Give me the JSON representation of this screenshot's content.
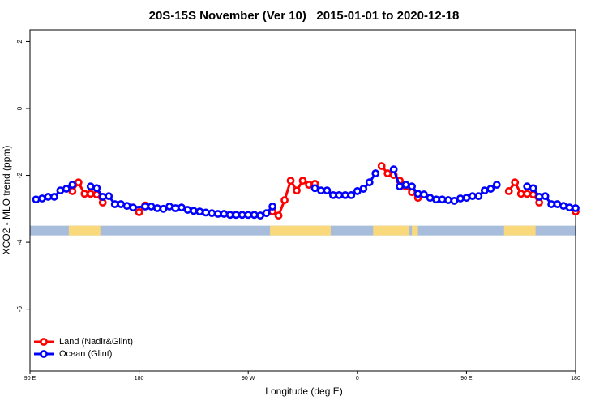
{
  "chart_data": {
    "type": "line",
    "title": "20S-15S November (Ver 10)   2015-01-01 to 2020-12-18",
    "x_label": "Longitude (deg E)",
    "y_label": "XCO2 - MLO trend (ppm)",
    "xlim": [
      90,
      540
    ],
    "xticks": [
      {
        "value": 90,
        "label": "90 E"
      },
      {
        "value": 180,
        "label": "180"
      },
      {
        "value": 270,
        "label": "90 W"
      },
      {
        "value": 360,
        "label": "0"
      },
      {
        "value": 450,
        "label": "90 E"
      },
      {
        "value": 540,
        "label": "180"
      }
    ],
    "ylim": [
      -7.85,
      2.35
    ],
    "yticks": [
      2,
      0,
      -2,
      -4,
      -6
    ],
    "legend": "bottom-left",
    "land_strip": {
      "y": -3.65,
      "ocean_color": "#a7bddb",
      "land_color": "#f9d97c",
      "land": [
        [
          122,
          148
        ],
        [
          288,
          338
        ],
        [
          373,
          403
        ],
        [
          405,
          410
        ],
        [
          481,
          507
        ]
      ]
    },
    "series": [
      {
        "name": "Land (Nadir&Glint)",
        "color": "#ff0000",
        "x": [
          125,
          130,
          135,
          140,
          145,
          150,
          155,
          180,
          185,
          190,
          290,
          295,
          300,
          305,
          310,
          315,
          320,
          325,
          330,
          380,
          385,
          390,
          395,
          400,
          405,
          410,
          415,
          485,
          490,
          495,
          500,
          505,
          510,
          515,
          540
        ],
        "values": [
          -2.47,
          -2.21,
          -2.55,
          -2.55,
          -2.57,
          -2.81,
          null,
          -3.1,
          -2.9,
          null,
          -3.08,
          -3.2,
          -2.74,
          -2.16,
          -2.45,
          -2.16,
          -2.28,
          -2.25,
          null,
          -1.72,
          -1.94,
          -1.99,
          -2.16,
          -2.33,
          -2.5,
          -2.67,
          null,
          -2.47,
          -2.21,
          -2.55,
          -2.55,
          -2.57,
          -2.81,
          null,
          -3.08
        ]
      },
      {
        "name": "Ocean (Glint)",
        "color": "#0000ff",
        "x": [
          95,
          100,
          105,
          110,
          115,
          120,
          125,
          130,
          140,
          145,
          150,
          155,
          160,
          165,
          170,
          175,
          185,
          190,
          195,
          200,
          205,
          210,
          215,
          220,
          225,
          230,
          235,
          240,
          245,
          250,
          255,
          260,
          265,
          270,
          275,
          280,
          285,
          290,
          295,
          325,
          330,
          335,
          340,
          345,
          350,
          355,
          360,
          365,
          370,
          375,
          380,
          390,
          395,
          400,
          405,
          410,
          415,
          420,
          425,
          430,
          435,
          440,
          445,
          450,
          455,
          460,
          465,
          470,
          475,
          480,
          500,
          505,
          510,
          515,
          520,
          525,
          530,
          535,
          540
        ],
        "values": [
          -2.72,
          -2.69,
          -2.64,
          -2.64,
          -2.45,
          -2.4,
          -2.28,
          null,
          -2.33,
          -2.38,
          -2.64,
          -2.62,
          -2.86,
          -2.86,
          -2.91,
          -2.96,
          -2.93,
          -2.93,
          -2.98,
          -3.0,
          -2.93,
          -2.98,
          -2.96,
          -3.03,
          -3.06,
          -3.08,
          -3.11,
          -3.13,
          -3.15,
          -3.15,
          -3.18,
          -3.18,
          -3.18,
          -3.18,
          -3.18,
          -3.2,
          -3.13,
          -2.93,
          null,
          -2.38,
          -2.45,
          -2.45,
          -2.59,
          -2.59,
          -2.59,
          -2.59,
          -2.47,
          -2.4,
          -2.21,
          -1.94,
          null,
          -1.82,
          -2.33,
          -2.28,
          -2.33,
          -2.55,
          -2.57,
          -2.67,
          -2.72,
          -2.72,
          -2.74,
          -2.76,
          -2.69,
          -2.67,
          -2.62,
          -2.62,
          -2.45,
          -2.4,
          -2.28,
          null,
          -2.33,
          -2.38,
          -2.64,
          -2.62,
          -2.86,
          -2.86,
          -2.91,
          -2.96,
          -2.98
        ]
      }
    ]
  }
}
